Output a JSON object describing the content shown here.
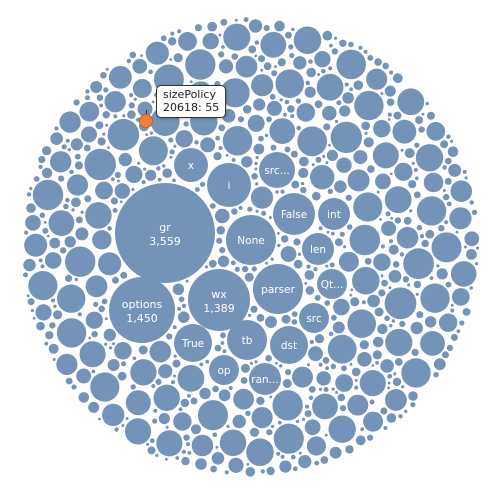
{
  "chart_data": {
    "type": "bubble",
    "title": "",
    "bubbles": [
      {
        "name": "gr",
        "value": 3559,
        "value_label": "3,559"
      },
      {
        "name": "options",
        "value": 1450,
        "value_label": "1,450"
      },
      {
        "name": "wx",
        "value": 1389,
        "value_label": "1,389"
      },
      {
        "name": "None",
        "value": 700
      },
      {
        "name": "parser",
        "value": 640
      },
      {
        "name": "i",
        "value": 480
      },
      {
        "name": "x",
        "value": 330
      },
      {
        "name": "False",
        "value": 420
      },
      {
        "name": "tb",
        "value": 420
      },
      {
        "name": "True",
        "value": 400
      },
      {
        "name": "dst",
        "value": 380
      },
      {
        "name": "src...",
        "value": 340
      },
      {
        "name": "int",
        "value": 300
      },
      {
        "name": "len",
        "value": 290
      },
      {
        "name": "Qt...",
        "value": 280
      },
      {
        "name": "src",
        "value": 280
      },
      {
        "name": "op",
        "value": 270
      },
      {
        "name": "ran...",
        "value": 280
      }
    ],
    "highlight": {
      "name": "sizePolicy",
      "value": 55,
      "rank": 20618
    },
    "bubble_color": "#7393b8",
    "highlight_color": "#f0813a"
  },
  "tooltip": {
    "title": "sizePolicy",
    "value_text": "20618: 55"
  }
}
